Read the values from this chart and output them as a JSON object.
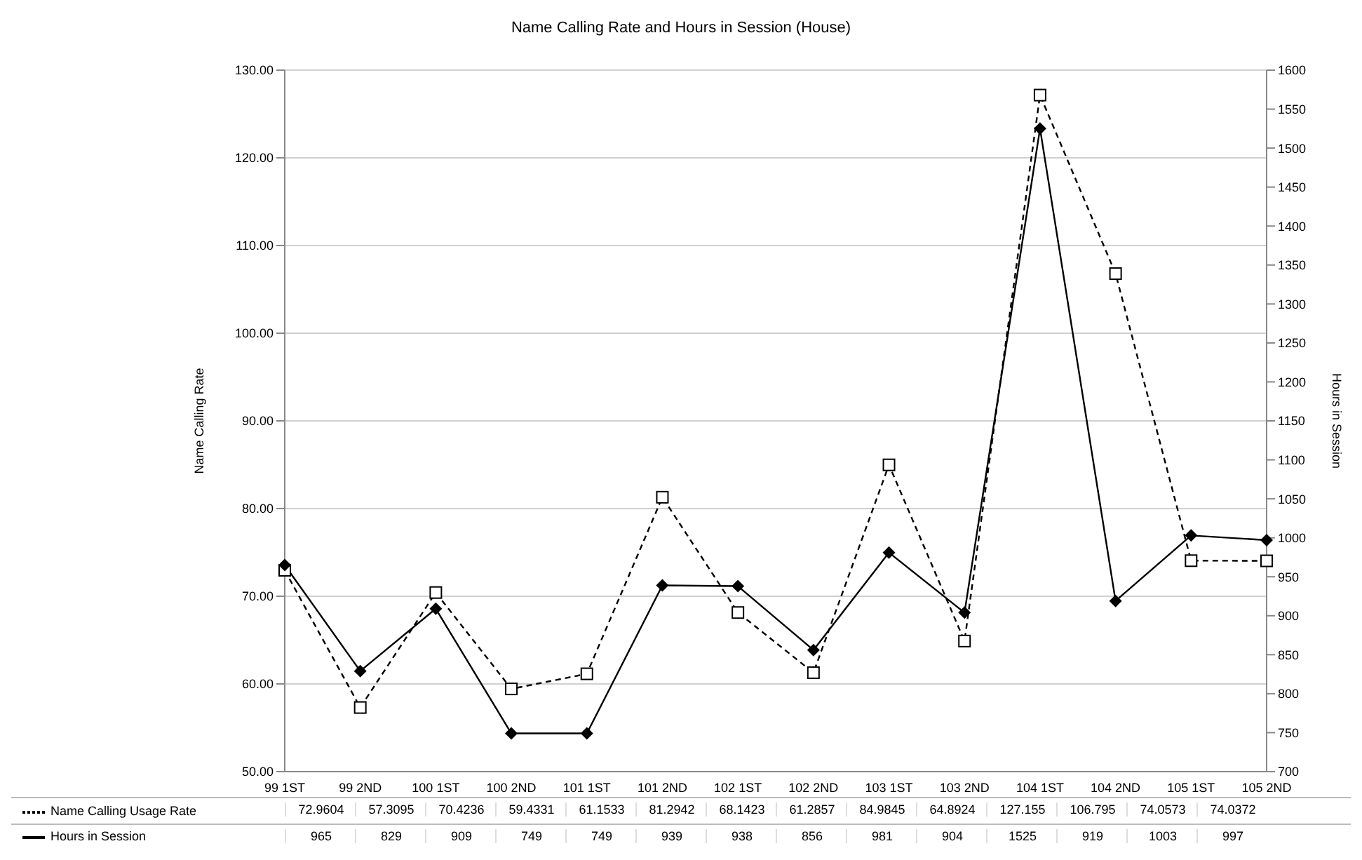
{
  "chart_data": {
    "type": "line",
    "title": "Name Calling Rate and Hours in Session (House)",
    "ylabel": "Name Calling Rate",
    "y2label": "Hours in Session",
    "categories": [
      "99 1ST",
      "99 2ND",
      "100 1ST",
      "100 2ND",
      "101 1ST",
      "101 2ND",
      "102 1ST",
      "102 2ND",
      "103 1ST",
      "103 2ND",
      "104 1ST",
      "104 2ND",
      "105 1ST",
      "105 2ND"
    ],
    "series": [
      {
        "name": "Name Calling Usage Rate",
        "color": "#000000",
        "marker": "square",
        "line_style": "dashed",
        "values": [
          72.9604,
          57.3095,
          70.4236,
          59.4331,
          61.1533,
          81.2942,
          68.1423,
          61.2857,
          84.9845,
          64.8924,
          127.155,
          106.795,
          74.0573,
          74.0372
        ]
      },
      {
        "name": "Hours in Session",
        "color": "#000000",
        "marker": "diamond",
        "line_style": "solid",
        "axis": "y2",
        "values": [
          965,
          829,
          909,
          749,
          749,
          939,
          938,
          856,
          981,
          904,
          1525,
          919,
          1003,
          997
        ]
      }
    ],
    "ylim": [
      50,
      130
    ],
    "yticks": [
      {
        "value": 50,
        "label": "50.00"
      },
      {
        "value": 60,
        "label": "60.00"
      },
      {
        "value": 70,
        "label": "70.00"
      },
      {
        "value": 80,
        "label": "80.00"
      },
      {
        "value": 90,
        "label": "90.00"
      },
      {
        "value": 100,
        "label": "100.00"
      },
      {
        "value": 110,
        "label": "110.00"
      },
      {
        "value": 120,
        "label": "120.00"
      },
      {
        "value": 130,
        "label": "130.00"
      }
    ],
    "y2lim": [
      700,
      1600
    ],
    "y2ticks": [
      700,
      750,
      800,
      850,
      900,
      950,
      1000,
      1050,
      1100,
      1150,
      1200,
      1250,
      1300,
      1350,
      1400,
      1450,
      1500,
      1550,
      1600
    ],
    "grid": "y",
    "legend": "bottom",
    "data_labels": true
  }
}
